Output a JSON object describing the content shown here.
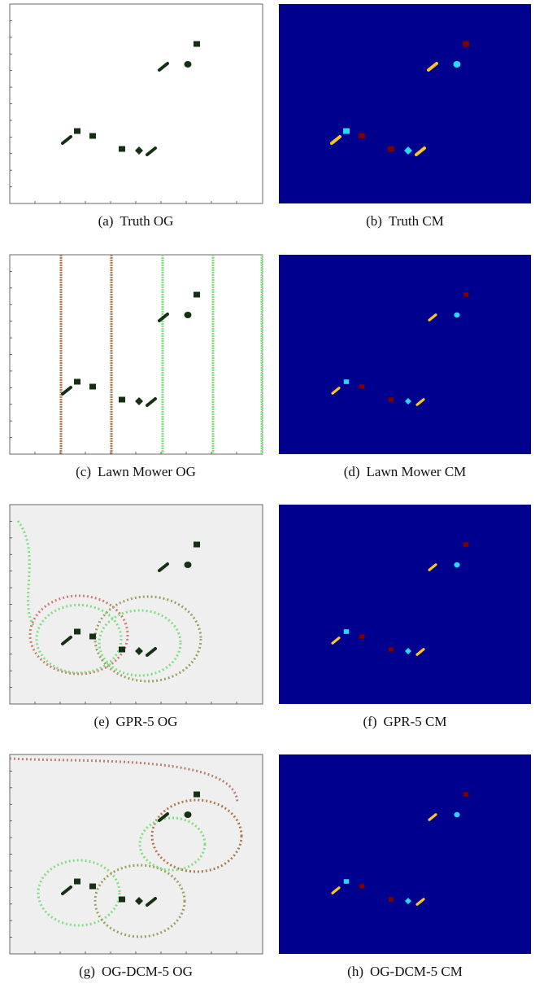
{
  "panels": [
    {
      "label": "(a)",
      "caption": "Truth OG"
    },
    {
      "label": "(b)",
      "caption": "Truth CM"
    },
    {
      "label": "(c)",
      "caption": "Lawn Mower OG"
    },
    {
      "label": "(d)",
      "caption": "Lawn Mower CM"
    },
    {
      "label": "(e)",
      "caption": "GPR-5 OG"
    },
    {
      "label": "(f)",
      "caption": "GPR-5 CM"
    },
    {
      "label": "(g)",
      "caption": "OG-DCM-5 OG"
    },
    {
      "label": "(h)",
      "caption": "OG-DCM-5 CM"
    }
  ]
}
